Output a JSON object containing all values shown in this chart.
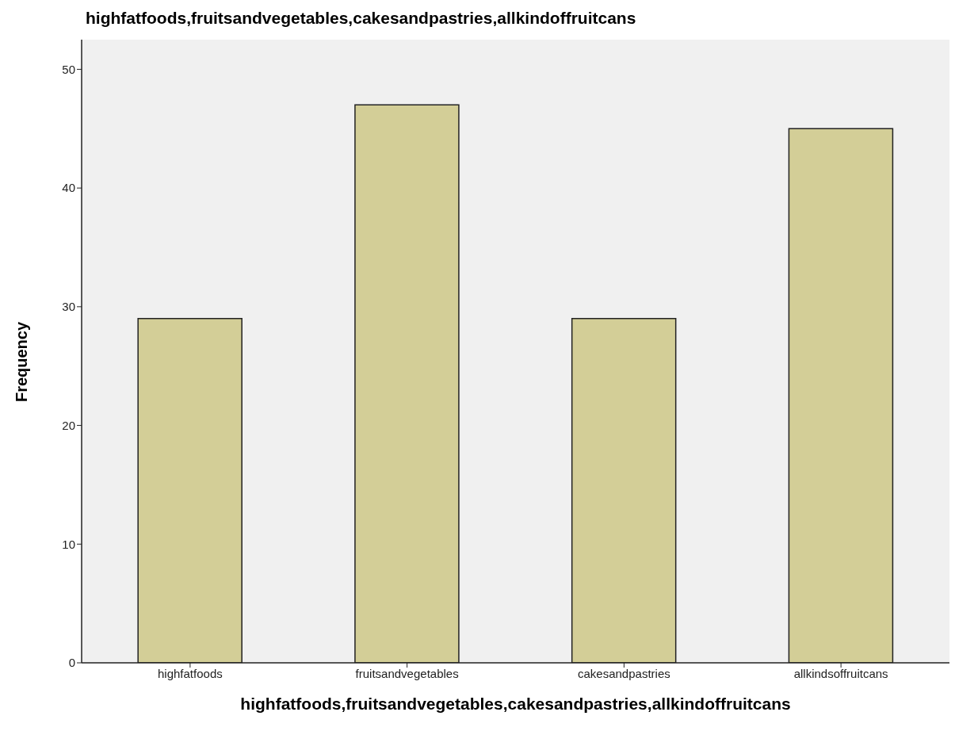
{
  "chart_data": {
    "type": "bar",
    "title": "highfatfoods,fruitsandvegetables,cakesandpastries,allkindoffruitcans",
    "xlabel": "highfatfoods,fruitsandvegetables,cakesandpastries,allkindoffruitcans",
    "ylabel": "Frequency",
    "categories": [
      "highfatfoods",
      "fruitsandvegetables",
      "cakesandpastries",
      "allkindsoffruitcans"
    ],
    "values": [
      29,
      47,
      29,
      45
    ],
    "color": "#d3ce97",
    "ylim": [
      0,
      52.5
    ],
    "yticks": [
      0,
      10,
      20,
      30,
      40,
      50
    ]
  }
}
